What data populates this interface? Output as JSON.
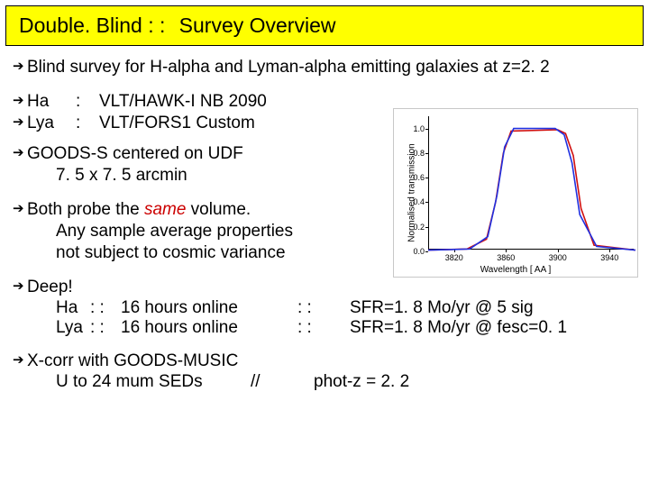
{
  "title": {
    "left": "Double. Blind  : :",
    "right": "Survey Overview"
  },
  "intro": {
    "text": "Blind survey for H-alpha and Lyman-alpha emitting galaxies at z=2. 2"
  },
  "filters": {
    "rows": [
      {
        "name": "Ha",
        "sep": ":",
        "instr": "VLT/HAWK-I NB 2090"
      },
      {
        "name": "Lya",
        "sep": ":",
        "instr": "VLT/FORS1 Custom"
      }
    ]
  },
  "goods": {
    "line1": "GOODS-S centered on UDF",
    "line2": "7. 5 x 7. 5 arcmin"
  },
  "probe": {
    "line1_a": "Both probe the ",
    "line1_b": "same",
    "line1_c": " volume.",
    "line2": "Any sample average properties",
    "line3": "not subject to cosmic variance"
  },
  "deep": {
    "head": "Deep!",
    "rows": [
      {
        "n": "Ha",
        "s": ": :",
        "t": "16 hours online",
        "ss": ": :",
        "r": "SFR=1. 8 Mo/yr @ 5 sig"
      },
      {
        "n": "Lya",
        "s": ": :",
        "t": "16 hours online",
        "ss": ": :",
        "r": "SFR=1. 8 Mo/yr @ fesc=0. 1"
      }
    ]
  },
  "xcorr": {
    "line1": "X-corr with GOODS-MUSIC",
    "line2_a": "U to 24 mum SEDs",
    "line2_b": "//",
    "line2_c": "phot-z = 2. 2"
  },
  "chart": {
    "ylabel": "Normalised transmission",
    "xlabel": "Wavelength [ AA ]",
    "yticks": [
      "0.0",
      "0.2",
      "0.4",
      "0.6",
      "0.8",
      "1.0"
    ],
    "xticks": [
      "3820",
      "3860",
      "3900",
      "3940"
    ],
    "xlim": [
      3800,
      3960
    ],
    "ylim": [
      0.0,
      1.1
    ],
    "line_colors": {
      "a": "#d01010",
      "b": "#2030e0"
    },
    "line_width": 1.6,
    "series_a_x": [
      3800,
      3830,
      3845,
      3852,
      3858,
      3864,
      3900,
      3906,
      3912,
      3918,
      3928,
      3960
    ],
    "series_a_y": [
      0.01,
      0.02,
      0.1,
      0.4,
      0.8,
      0.98,
      0.99,
      0.96,
      0.78,
      0.35,
      0.05,
      0.01
    ],
    "series_b_x": [
      3800,
      3832,
      3846,
      3853,
      3859,
      3866,
      3898,
      3905,
      3911,
      3917,
      3930,
      3960
    ],
    "series_b_y": [
      0.01,
      0.02,
      0.12,
      0.45,
      0.85,
      1.0,
      1.0,
      0.95,
      0.72,
      0.3,
      0.04,
      0.01
    ]
  }
}
